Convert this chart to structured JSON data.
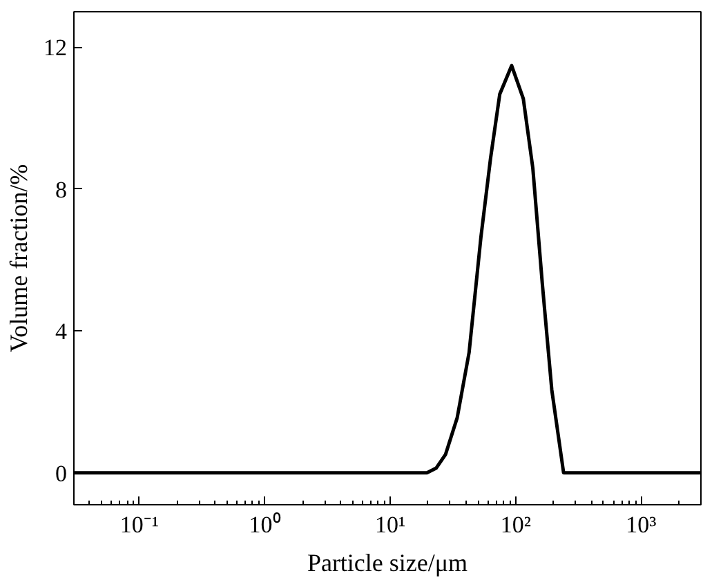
{
  "chart_data": {
    "type": "line",
    "xlabel": "Particle size/μm",
    "ylabel": "Volume fraction/%",
    "log": "x",
    "xlim": [
      0.03,
      3000
    ],
    "ylim": [
      -0.9,
      13
    ],
    "xticks": [
      {
        "value": 0.1,
        "label": "10⁻¹"
      },
      {
        "value": 1,
        "label": "10⁰"
      },
      {
        "value": 10,
        "label": "10¹"
      },
      {
        "value": 100,
        "label": "10²"
      },
      {
        "value": 1000,
        "label": "10³"
      }
    ],
    "yticks": [
      0,
      4,
      8,
      12
    ],
    "grid": false,
    "marker": "none",
    "line_style": "solid",
    "series": [
      {
        "color": "#000000",
        "x": [
          0.03,
          19.6,
          23.2,
          27.6,
          34.2,
          42.5,
          52.8,
          63,
          74.7,
          92.9,
          115,
          137,
          163,
          194,
          241,
          3000
        ],
        "values": [
          0,
          0,
          0.13,
          0.52,
          1.56,
          3.39,
          6.64,
          8.86,
          10.68,
          11.48,
          10.55,
          8.59,
          5.34,
          2.34,
          0,
          0
        ]
      }
    ]
  }
}
